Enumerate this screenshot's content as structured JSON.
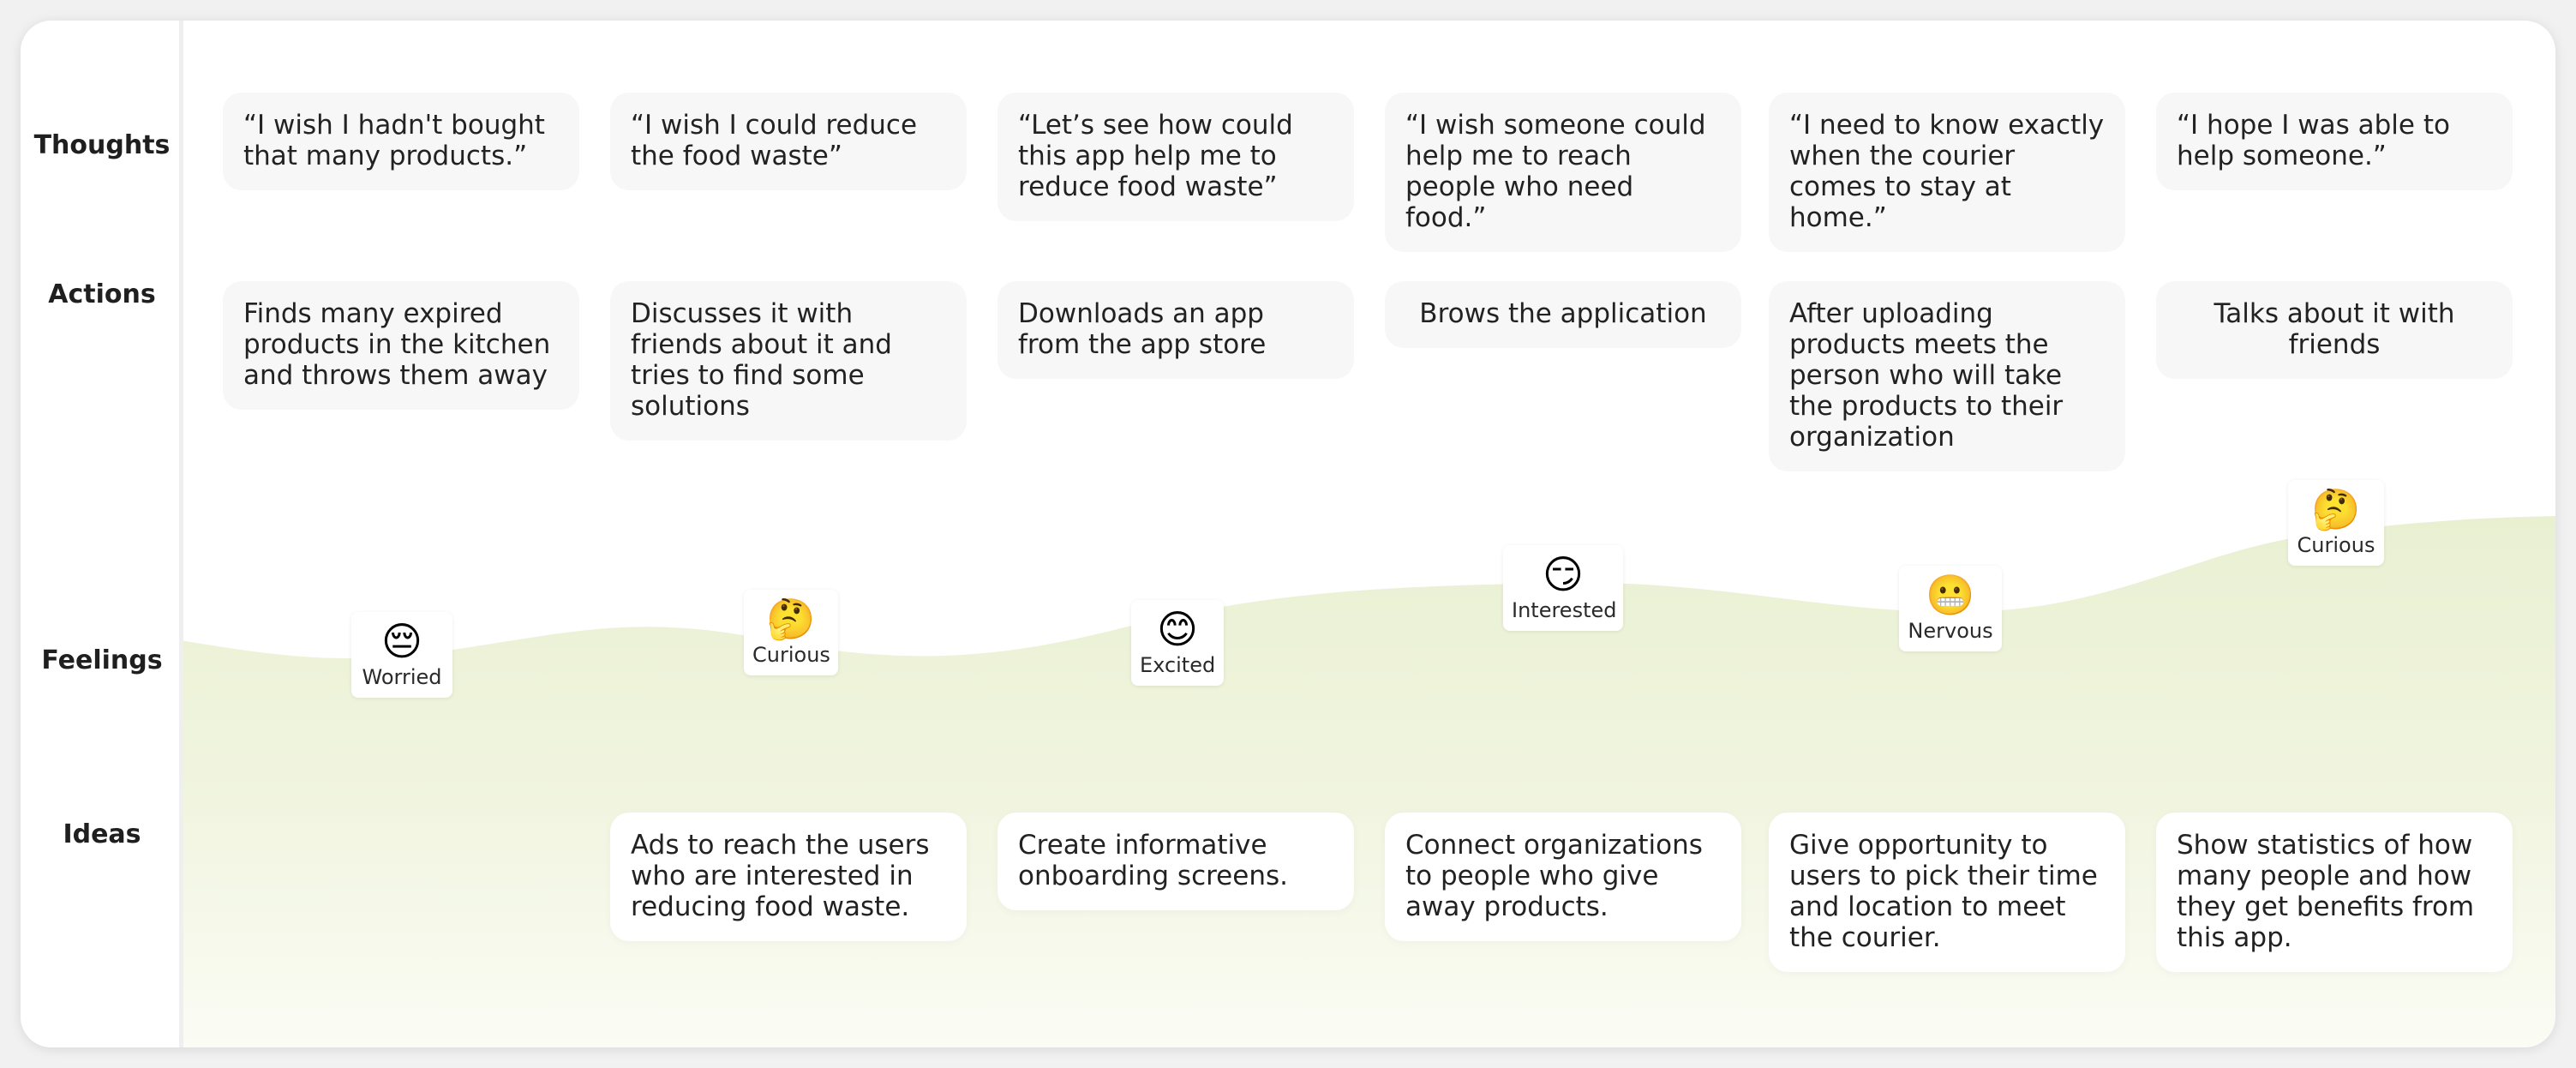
{
  "rows": {
    "thoughts": "Thoughts",
    "actions": "Actions",
    "feelings": "Feelings",
    "ideas": "Ideas"
  },
  "thoughts": [
    "“I wish I hadn't bought that many products.”",
    "“I wish I could reduce the food waste”",
    "“Let’s see how could this app help me to reduce food waste”",
    "“I wish someone could help me to reach people who need food.”",
    "“I need to know exactly when the courier comes to stay at home.”",
    "“I hope I was able to help someone.”"
  ],
  "actions": [
    "Finds many expired products in the kitchen and throws them away",
    "Discusses it with friends about it and tries to find some solutions",
    "Downloads an app from the app store",
    "Brows the application",
    "After uploading products meets the person who will take the products to their organization",
    "Talks about it with friends"
  ],
  "feelings": [
    {
      "emoji": "😔",
      "label": "Worried",
      "icon": "pensive-face-icon",
      "level": 0.3
    },
    {
      "emoji": "🤔",
      "label": "Curious",
      "icon": "thinking-face-icon",
      "level": 0.48
    },
    {
      "emoji": "😊",
      "label": "Excited",
      "icon": "smiling-face-icon",
      "level": 0.4
    },
    {
      "emoji": "😏",
      "label": "Interested",
      "icon": "smirking-face-icon",
      "level": 0.62
    },
    {
      "emoji": "😬",
      "label": "Nervous",
      "icon": "grimacing-face-icon",
      "level": 0.47
    },
    {
      "emoji": "🤔",
      "label": "Curious",
      "icon": "thinking-face-icon",
      "level": 1.0
    }
  ],
  "ideas": [
    "",
    "Ads to reach the users who are interested in reducing food waste.",
    "Create informative onboarding screens.",
    "Connect organizations to people who give away products.",
    "Give opportunity to users to pick their time and location to meet the courier.",
    "Show statistics of how many people and how they get benefits from this app."
  ],
  "colors": {
    "card_grey": "#f7f7f7",
    "wave_green": "#e8efcf",
    "wave_fade": "#fafbf3"
  }
}
